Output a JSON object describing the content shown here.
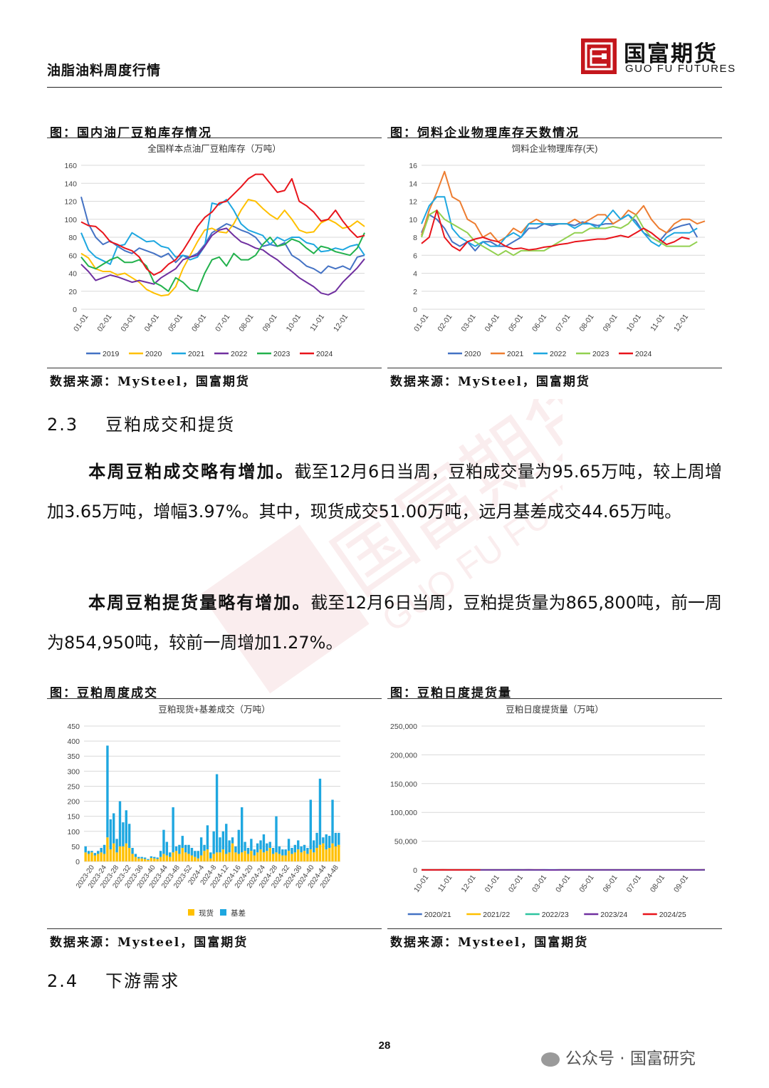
{
  "header": {
    "title": "油脂油料周度行情",
    "logo_cn": "国富期货",
    "logo_en": "GUO FU FUTURES"
  },
  "colors": {
    "2019": "#4472C4",
    "2020": "#FFC000",
    "2021": "#1EA7E0",
    "2022": "#7030A0",
    "2023": "#22B14C",
    "2024": "#E8141B",
    "feed_2020": "#4472C4",
    "feed_2021": "#ED7D31",
    "feed_2022": "#1EA7E0",
    "feed_2023": "#92D050",
    "feed_2024": "#E8141B",
    "spot": "#FFC000",
    "basis": "#1EA7E0",
    "d2020": "#4472C4",
    "d2021": "#FFC000",
    "d2022": "#2EC4A0",
    "d2023": "#7030A0",
    "d2024": "#E8141B"
  },
  "figures": {
    "fig1": {
      "caption": "图：国内油厂豆粕库存情况",
      "source": "数据来源：MySteel，国富期货"
    },
    "fig2": {
      "caption": "图：饲料企业物理库存天数情况",
      "source": "数据来源：MySteel，国富期货"
    },
    "fig3": {
      "caption": "图：豆粕周度成交",
      "source": "数据来源：Mysteel，国富期货"
    },
    "fig4": {
      "caption": "图：豆粕日度提货量",
      "source": "数据来源：Mysteel，国富期货"
    }
  },
  "section_23": {
    "num": "2.3",
    "title": "豆粕成交和提货"
  },
  "para1": {
    "bold": "本周豆粕成交略有增加。",
    "text": "截至12月6日当周，豆粕成交量为95.65万吨，较上周增加3.65万吨，增幅3.97%。其中，现货成交51.00万吨，远月基差成交44.65万吨。"
  },
  "para2": {
    "bold": "本周豆粕提货量略有增加。",
    "text": "截至12月6日当周，豆粕提货量为865,800吨，前一周为854,950吨，较前一周增加1.27%。"
  },
  "section_24": {
    "num": "2.4",
    "title": "下游需求"
  },
  "page_number": "28",
  "footer_brand": "公众号 · 国富研究",
  "chart_data": [
    {
      "type": "line",
      "title": "全国样本点油厂豆粕库存（万吨）",
      "x_ticks": [
        "01-01",
        "02-01",
        "03-01",
        "04-01",
        "05-01",
        "06-01",
        "07-01",
        "08-01",
        "09-01",
        "10-01",
        "11-01",
        "12-01"
      ],
      "ylim": [
        0,
        160
      ],
      "y_ticks": [
        0,
        20,
        40,
        60,
        80,
        100,
        120,
        140,
        160
      ],
      "grid": true,
      "legend": "bottom",
      "series": [
        {
          "name": "2019",
          "values": [
            125,
            95,
            80,
            72,
            76,
            70,
            65,
            62,
            68,
            65,
            62,
            58,
            62,
            52,
            60,
            58,
            62,
            72,
            85,
            90,
            95,
            92,
            88,
            85,
            80,
            70,
            72,
            70,
            74,
            60,
            55,
            48,
            45,
            40,
            48,
            45,
            48,
            44,
            58,
            60
          ]
        },
        {
          "name": "2020",
          "values": [
            62,
            57,
            45,
            42,
            42,
            38,
            40,
            35,
            30,
            22,
            18,
            15,
            16,
            25,
            45,
            60,
            75,
            88,
            90,
            86,
            85,
            95,
            110,
            122,
            120,
            112,
            105,
            100,
            110,
            100,
            88,
            85,
            86,
            96,
            100,
            96,
            90,
            92,
            98,
            92
          ]
        },
        {
          "name": "2021",
          "values": [
            85,
            66,
            58,
            54,
            50,
            70,
            72,
            85,
            80,
            75,
            76,
            70,
            68,
            58,
            60,
            55,
            58,
            70,
            118,
            116,
            122,
            110,
            95,
            88,
            85,
            82,
            72,
            80,
            76,
            80,
            80,
            74,
            72,
            64,
            65,
            68,
            66,
            70,
            72,
            60
          ]
        },
        {
          "name": "2022",
          "values": [
            50,
            42,
            32,
            35,
            38,
            36,
            33,
            30,
            32,
            30,
            28,
            35,
            40,
            45,
            55,
            58,
            60,
            70,
            82,
            88,
            90,
            82,
            75,
            72,
            68,
            66,
            60,
            55,
            48,
            42,
            35,
            30,
            25,
            18,
            16,
            20,
            30,
            38,
            46,
            56
          ]
        },
        {
          "name": "2023",
          "values": [
            58,
            48,
            45,
            50,
            55,
            58,
            52,
            52,
            55,
            48,
            30,
            26,
            20,
            35,
            30,
            22,
            20,
            40,
            55,
            58,
            48,
            62,
            55,
            55,
            60,
            72,
            80,
            70,
            72,
            78,
            75,
            68,
            62,
            70,
            68,
            64,
            62,
            60,
            68,
            85
          ]
        },
        {
          "name": "2024",
          "values": [
            97,
            93,
            92,
            85,
            75,
            72,
            68,
            65,
            58,
            45,
            38,
            42,
            50,
            55,
            65,
            78,
            92,
            102,
            108,
            118,
            120,
            128,
            136,
            145,
            150,
            150,
            140,
            130,
            132,
            145,
            120,
            115,
            108,
            98,
            100,
            110,
            98,
            88,
            80,
            82
          ]
        }
      ]
    },
    {
      "type": "line",
      "title": "饲料企业物理库存(天)",
      "x_ticks": [
        "01-01",
        "02-01",
        "03-01",
        "04-01",
        "05-01",
        "06-01",
        "07-01",
        "08-01",
        "09-01",
        "10-01",
        "11-01",
        "12-01"
      ],
      "ylim": [
        0,
        16
      ],
      "y_ticks": [
        0,
        2,
        4,
        6,
        8,
        10,
        12,
        14,
        16
      ],
      "grid": true,
      "legend": "bottom",
      "series": [
        {
          "name": "2020",
          "values": [
            8.5,
            10.5,
            10,
            9,
            7.5,
            7,
            7.5,
            6.5,
            7.5,
            7.5,
            7,
            7,
            7.5,
            8,
            9,
            9,
            9.5,
            9.3,
            9.5,
            9.5,
            9.3,
            9.7,
            9.5,
            9.3,
            9.5,
            9.5,
            10,
            10.5,
            9.8,
            8.5,
            8,
            7.5,
            8.5,
            9,
            9.3,
            9.5,
            8
          ]
        },
        {
          "name": "2021",
          "values": [
            8.2,
            11,
            13,
            15.3,
            12.5,
            12,
            10,
            9.5,
            8,
            8.5,
            7.5,
            8,
            9,
            8.5,
            9.5,
            10,
            9.5,
            9.5,
            9.5,
            9.5,
            10,
            9.5,
            10,
            10.5,
            10.5,
            9.5,
            10,
            11,
            10.5,
            11.5,
            10,
            9,
            8.5,
            9.5,
            10,
            10,
            9.5,
            9.8
          ]
        },
        {
          "name": "2022",
          "values": [
            9.5,
            11.5,
            12.5,
            12.5,
            9,
            8,
            7.5,
            7,
            7.5,
            7,
            7,
            8,
            8.5,
            8,
            9.5,
            9.5,
            9.5,
            9.5,
            9.5,
            9.5,
            9,
            9.5,
            9.5,
            9,
            10,
            11,
            10,
            10.5,
            9.5,
            8.5,
            7.5,
            7,
            8,
            8.5,
            8.5,
            8.5,
            9
          ]
        },
        {
          "name": "2023",
          "values": [
            8,
            10.5,
            11,
            10,
            9.5,
            9,
            8.5,
            7.5,
            7,
            6.5,
            6,
            6.5,
            6,
            6.5,
            6.5,
            6.5,
            6.5,
            7,
            7.5,
            8,
            8.5,
            8.5,
            9,
            9,
            9,
            9.2,
            9,
            9.5,
            10.5,
            9,
            8,
            7.5,
            7,
            7,
            7,
            7,
            7.5
          ]
        },
        {
          "name": "2024",
          "values": [
            7.3,
            8,
            11,
            8,
            7,
            6.5,
            7.5,
            7.8,
            8,
            7.7,
            7.5,
            7,
            6.7,
            6.8,
            6.6,
            6.7,
            6.9,
            7,
            7.2,
            7.3,
            7.5,
            7.6,
            7.7,
            7.8,
            7.8,
            8,
            8.2,
            8,
            8.5,
            9,
            8.5,
            7.8,
            7.2,
            7.5,
            8,
            7.8
          ]
        }
      ]
    },
    {
      "type": "bar",
      "stacked": true,
      "title": "豆粕现货+基差成交（万吨）",
      "ylim": [
        0,
        450
      ],
      "y_ticks": [
        0,
        50,
        100,
        150,
        200,
        250,
        300,
        350,
        400,
        450
      ],
      "x_ticks": [
        "2023-20",
        "2023-24",
        "2023-28",
        "2023-32",
        "2023-36",
        "2023-40",
        "2023-44",
        "2023-48",
        "2023-52",
        "2024-4",
        "2024-8",
        "2024-12",
        "2024-16",
        "2024-20",
        "2024-24",
        "2024-28",
        "2024-32",
        "2024-36",
        "2024-40",
        "2024-44",
        "2024-48"
      ],
      "legend": "bottom",
      "series": [
        {
          "name": "现货",
          "values": [
            30,
            25,
            30,
            20,
            25,
            30,
            25,
            80,
            40,
            60,
            30,
            50,
            50,
            60,
            45,
            25,
            15,
            10,
            10,
            8,
            5,
            12,
            10,
            8,
            15,
            25,
            20,
            15,
            30,
            35,
            25,
            45,
            30,
            25,
            20,
            15,
            10,
            20,
            35,
            40,
            10,
            25,
            30,
            30,
            40,
            25,
            30,
            60,
            30,
            25,
            30,
            35,
            25,
            35,
            20,
            30,
            40,
            30,
            35,
            45,
            25,
            30,
            25,
            20,
            20,
            35,
            25,
            30,
            40,
            30,
            35,
            25,
            40,
            30,
            45,
            55,
            60,
            40,
            45,
            60,
            50,
            55
          ]
        },
        {
          "name": "基差",
          "values": [
            20,
            10,
            5,
            8,
            10,
            15,
            30,
            305,
            100,
            100,
            45,
            150,
            80,
            110,
            80,
            20,
            10,
            5,
            5,
            5,
            3,
            5,
            5,
            5,
            20,
            80,
            45,
            15,
            150,
            15,
            30,
            40,
            25,
            30,
            25,
            20,
            25,
            60,
            20,
            80,
            20,
            75,
            260,
            50,
            60,
            100,
            40,
            20,
            20,
            80,
            150,
            30,
            20,
            40,
            20,
            30,
            30,
            60,
            25,
            20,
            20,
            120,
            25,
            20,
            20,
            40,
            20,
            25,
            30,
            20,
            20,
            20,
            165,
            40,
            50,
            220,
            20,
            50,
            40,
            145,
            45,
            40
          ]
        }
      ]
    },
    {
      "type": "line",
      "title": "豆粕日度提货量（万吨）",
      "ylim": [
        0,
        250000
      ],
      "y_ticks": [
        "0",
        "50,000",
        "100,000",
        "150,000",
        "200,000",
        "250,000"
      ],
      "x_ticks": [
        "10-01",
        "11-01",
        "12-01",
        "01-01",
        "02-01",
        "03-01",
        "04-01",
        "05-01",
        "06-01",
        "07-01",
        "08-01",
        "09-01"
      ],
      "legend": "bottom",
      "series": [
        {
          "name": "2020/21",
          "values": [
            175,
            165,
            170,
            160,
            168,
            172,
            165,
            160,
            170,
            175,
            162,
            168,
            172,
            160,
            165,
            170,
            158,
            165,
            170,
            168,
            160,
            165,
            158,
            162,
            165,
            170,
            160,
            165,
            168,
            162,
            160,
            165,
            168,
            162,
            158,
            162,
            165,
            160,
            110,
            105,
            115,
            110,
            120,
            112,
            115,
            118,
            125,
            115,
            120,
            115,
            110,
            125,
            115,
            120
          ]
        },
        {
          "name": "2021/22",
          "values": [
            115,
            125,
            120,
            130,
            115,
            125,
            140,
            130,
            150,
            145,
            165,
            155,
            160,
            170,
            150,
            165,
            170,
            160,
            165,
            155,
            170,
            175,
            160,
            5,
            10,
            40,
            100,
            130,
            120,
            135,
            140,
            150,
            130,
            145,
            150,
            140,
            160,
            155,
            165,
            150,
            160,
            165,
            155,
            170,
            175,
            160,
            165,
            170,
            180,
            170,
            165,
            175,
            180,
            190
          ]
        },
        {
          "name": "2022/23",
          "values": [
            150,
            140,
            160,
            170,
            155,
            165,
            175,
            160,
            150,
            170,
            180,
            165,
            175,
            160,
            185,
            170,
            180,
            195,
            200,
            180,
            160,
            10,
            30,
            80,
            150,
            160,
            155,
            165,
            160,
            150,
            165,
            170,
            180,
            160,
            165,
            170,
            175,
            160,
            165,
            170,
            160,
            175,
            180,
            165,
            170,
            160,
            175,
            180,
            165,
            170,
            175,
            180,
            170,
            165
          ]
        },
        {
          "name": "2023/24",
          "values": [
            130,
            145,
            160,
            150,
            165,
            155,
            140,
            155,
            170,
            160,
            150,
            165,
            175,
            160,
            150,
            170,
            180,
            165,
            155,
            175,
            190,
            150,
            160,
            175,
            20,
            40,
            100,
            145,
            140,
            130,
            145,
            120,
            145,
            130,
            155,
            140,
            150,
            160,
            145,
            165,
            150,
            160,
            155,
            145,
            165,
            150,
            160,
            170,
            155,
            165,
            175,
            160,
            170,
            210
          ]
        },
        {
          "name": "2024/25",
          "values": [
            175,
            185,
            170,
            180,
            190,
            175,
            185,
            170,
            180,
            178,
            172,
            175
          ]
        }
      ]
    }
  ]
}
